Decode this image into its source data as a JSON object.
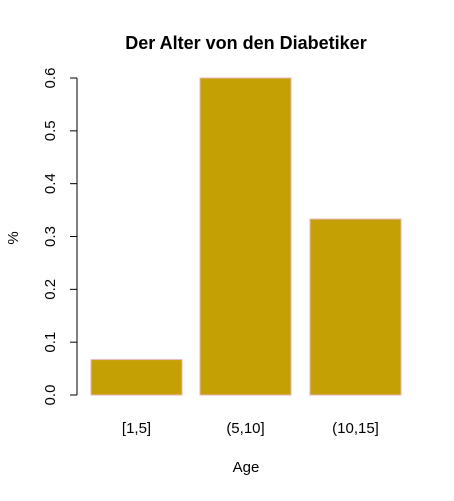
{
  "chart_data": {
    "type": "bar",
    "title": "Der Alter von den Diabetiker",
    "xlabel": "Age",
    "ylabel": "%",
    "categories": [
      "[1,5]",
      "(5,10]",
      "(10,15]"
    ],
    "values": [
      0.067,
      0.6,
      0.333
    ],
    "ylim": [
      0,
      0.6
    ],
    "yticks": [
      "0.0",
      "0.1",
      "0.2",
      "0.3",
      "0.4",
      "0.5",
      "0.6"
    ],
    "grid": false,
    "legend": "none",
    "colors": {
      "bar_fill": "#C4A004",
      "bar_border": "#E8B4B8",
      "axis": "#000000"
    }
  }
}
